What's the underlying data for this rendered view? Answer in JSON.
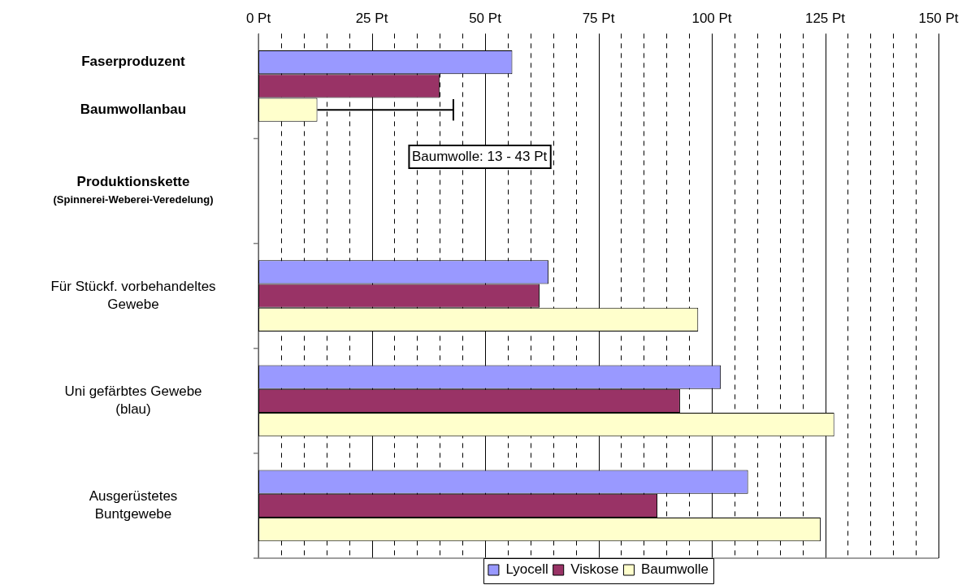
{
  "chart_data": {
    "type": "bar",
    "orientation": "horizontal",
    "categories": [
      "Faserproduzent\n\nBaumwollanbau",
      "Produktionskette\n(Spinnerei-Weberei-Veredelung)",
      "Für Stückf. vorbehandeltes\nGewebe",
      "Uni gefärbtes Gewebe\n(blau)",
      "Ausgerüstetes\nBuntgewebe"
    ],
    "series": [
      {
        "name": "Lyocell",
        "color": "#9999ff",
        "values": [
          56,
          null,
          64,
          102,
          108
        ]
      },
      {
        "name": "Viskose",
        "color": "#993366",
        "values": [
          40,
          null,
          62,
          93,
          88
        ]
      },
      {
        "name": "Baumwolle",
        "color": "#ffffcc",
        "values": [
          13,
          null,
          97,
          127,
          124
        ],
        "errors": [
          [
            13,
            43
          ],
          null,
          null,
          null,
          null
        ]
      }
    ],
    "xlim": [
      0,
      150
    ],
    "xticks": [
      {
        "value": 0,
        "label": "0 Pt"
      },
      {
        "value": 5,
        "label": null
      },
      {
        "value": 10,
        "label": null
      },
      {
        "value": 15,
        "label": null
      },
      {
        "value": 20,
        "label": null
      },
      {
        "value": 25,
        "label": "25 Pt"
      },
      {
        "value": 30,
        "label": null
      },
      {
        "value": 35,
        "label": null
      },
      {
        "value": 40,
        "label": null
      },
      {
        "value": 45,
        "label": null
      },
      {
        "value": 50,
        "label": "50 Pt"
      },
      {
        "value": 55,
        "label": null
      },
      {
        "value": 60,
        "label": null
      },
      {
        "value": 65,
        "label": null
      },
      {
        "value": 70,
        "label": null
      },
      {
        "value": 75,
        "label": "75 Pt"
      },
      {
        "value": 80,
        "label": null
      },
      {
        "value": 85,
        "label": null
      },
      {
        "value": 90,
        "label": null
      },
      {
        "value": 95,
        "label": null
      },
      {
        "value": 100,
        "label": "100 Pt"
      },
      {
        "value": 105,
        "label": null
      },
      {
        "value": 110,
        "label": null
      },
      {
        "value": 115,
        "label": null
      },
      {
        "value": 120,
        "label": null
      },
      {
        "value": 125,
        "label": "125 Pt"
      },
      {
        "value": 130,
        "label": null
      },
      {
        "value": 135,
        "label": null
      },
      {
        "value": 140,
        "label": null
      },
      {
        "value": 145,
        "label": null
      },
      {
        "value": 150,
        "label": "150 Pt"
      }
    ],
    "grid": "x",
    "legend": "bottom",
    "annotations": [
      "Baumwolle: 13 - 43 Pt"
    ]
  }
}
